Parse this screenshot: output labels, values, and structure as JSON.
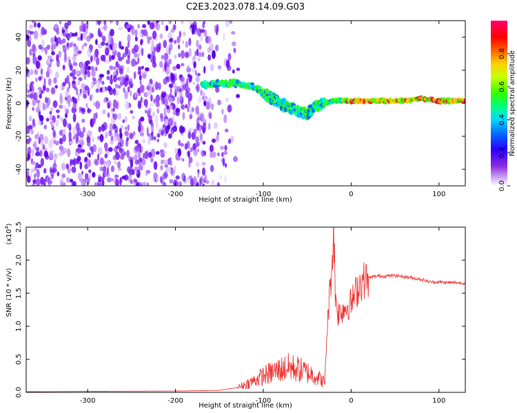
{
  "figure_title": "C2E3.2023.078.14.09.G03",
  "chart_data": [
    {
      "type": "heatmap",
      "xlabel": "Height of straight line (km)",
      "ylabel": "Frequency (Hz)",
      "xlim": [
        -370,
        130
      ],
      "ylim": [
        -50,
        50
      ],
      "xticks": [
        -300,
        -200,
        -100,
        0,
        100
      ],
      "xtick_labels": [
        "-300",
        "-200",
        "-100",
        "0",
        "100"
      ],
      "yticks": [
        -40,
        -20,
        0,
        20,
        40
      ],
      "ytick_labels": [
        "-40",
        "-20",
        "0",
        "20",
        "40"
      ],
      "colorbar": {
        "label": "Normalized spectral amplitude",
        "range": [
          0,
          1
        ],
        "ticks": [
          0,
          0.2,
          0.4,
          0.6,
          0.8
        ],
        "tick_labels": [
          "0.0",
          "0.2",
          "0.4",
          "0.6",
          "0.8"
        ]
      },
      "ridge": {
        "description_points_x": [
          -170,
          -150,
          -130,
          -110,
          -100,
          -90,
          -80,
          -70,
          -60,
          -50,
          -40,
          -30,
          -20,
          -10,
          0,
          20,
          40,
          60,
          80,
          100,
          130
        ],
        "description_points_y": [
          11,
          12,
          12,
          10,
          6,
          3,
          0,
          -3,
          -5,
          -6,
          -2,
          0,
          1.5,
          1.5,
          1.5,
          1.5,
          1.5,
          1.5,
          3,
          1.5,
          1.5
        ]
      },
      "noise_extent_x": [
        -370,
        -140
      ]
    },
    {
      "type": "line",
      "xlabel": "Height of straight line (km)",
      "ylabel": "SNR (10 * v/v)",
      "scale_label": "(x10",
      "scale_exponent": "4",
      "scale_close": ")",
      "xlim": [
        -370,
        130
      ],
      "ylim": [
        0,
        25000
      ],
      "xticks": [
        -300,
        -200,
        -100,
        0,
        100
      ],
      "xtick_labels": [
        "-300",
        "-200",
        "-100",
        "0",
        "100"
      ],
      "yticks": [
        0,
        5000,
        10000,
        15000,
        20000,
        25000
      ],
      "ytick_labels": [
        "0.0",
        "0.5",
        "1.0",
        "1.5",
        "2.0",
        "2.5"
      ],
      "series": [
        {
          "color": "#ee3333",
          "x": [
            -370,
            -300,
            -200,
            -150,
            -130,
            -120,
            -110,
            -100,
            -90,
            -80,
            -70,
            -60,
            -50,
            -40,
            -30,
            -28,
            -25,
            -22,
            -20,
            -18,
            -15,
            -10,
            -5,
            0,
            5,
            10,
            15,
            20,
            25,
            30,
            40,
            50,
            60,
            70,
            80,
            90,
            100,
            110,
            120,
            130
          ],
          "y": [
            100,
            150,
            200,
            300,
            700,
            1200,
            1800,
            2500,
            3000,
            3500,
            3800,
            3500,
            3000,
            2500,
            1500,
            8000,
            14000,
            19000,
            25000,
            15000,
            12000,
            12500,
            13000,
            13500,
            15000,
            16500,
            17000,
            17300,
            17500,
            17600,
            17600,
            17700,
            17500,
            17300,
            17100,
            16700,
            16700,
            16600,
            16600,
            16500
          ]
        }
      ]
    }
  ]
}
